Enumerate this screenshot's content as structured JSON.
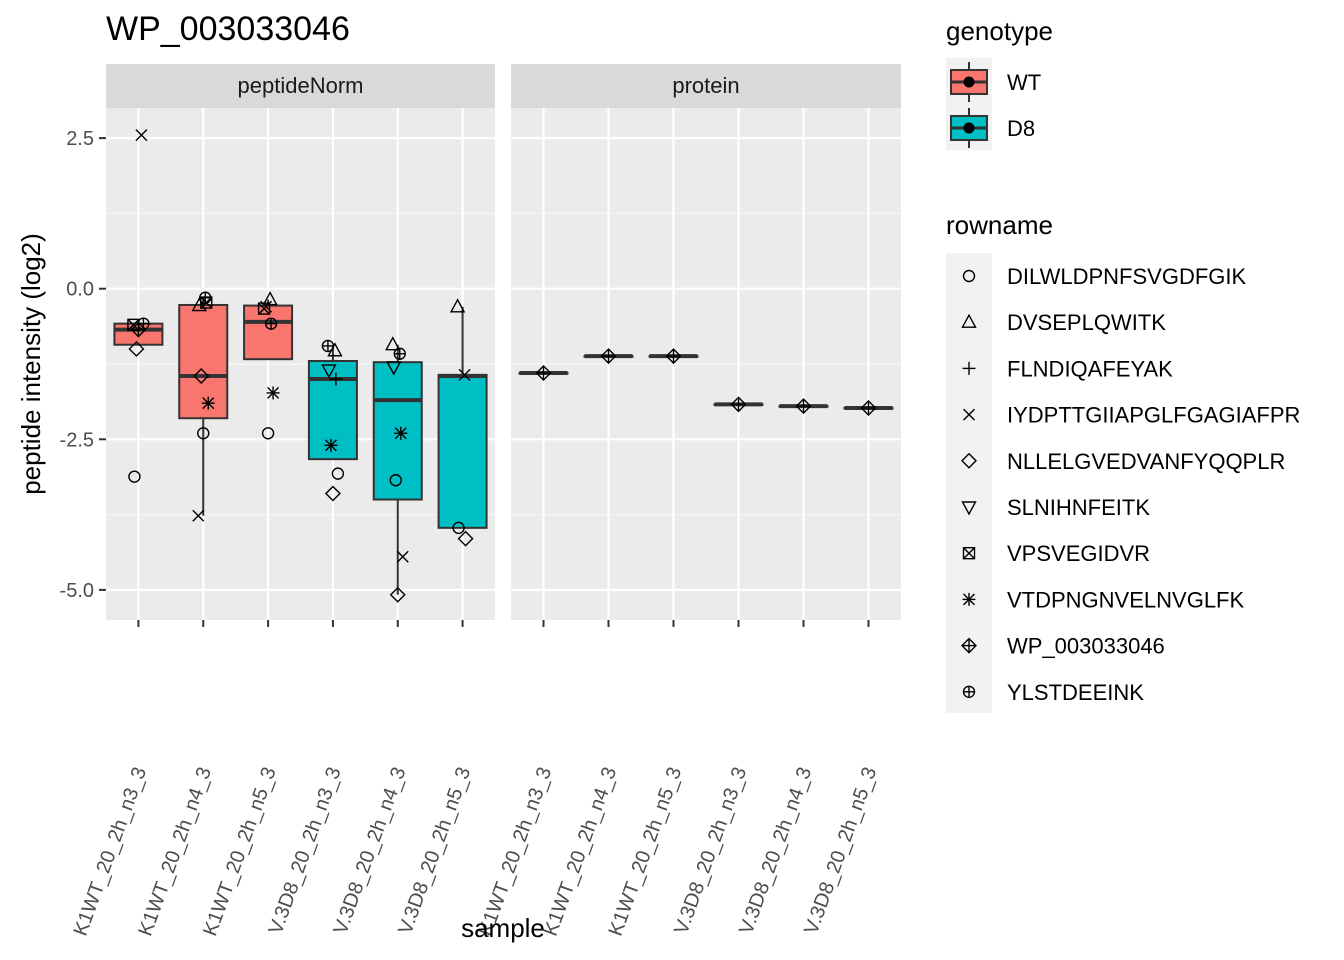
{
  "chart_data": {
    "type": "boxplot",
    "title": "WP_003033046",
    "xlabel": "sample",
    "ylabel": "peptide intensity (log2)",
    "ylim": [
      -5.5,
      3.0
    ],
    "yticks": [
      2.5,
      0.0,
      -2.5,
      -5.0
    ],
    "ytick_labels": [
      "2.5",
      "0.0",
      "-2.5",
      "-5.0"
    ],
    "facets": [
      "peptideNorm",
      "protein"
    ],
    "categories": [
      "K1WT_20_2h_n3_3",
      "K1WT_20_2h_n4_3",
      "K1WT_20_2h_n5_3",
      "V.3D8_20_2h_n3_3",
      "V.3D8_20_2h_n4_3",
      "V.3D8_20_2h_n5_3"
    ],
    "category_genotype": [
      "WT",
      "WT",
      "WT",
      "D8",
      "D8",
      "D8"
    ],
    "genotype_colors": {
      "WT": "#F8766D",
      "D8": "#00BFC4"
    },
    "grid": true,
    "legend_position": "right",
    "legend": {
      "genotype": {
        "title": "genotype",
        "items": [
          "WT",
          "D8"
        ]
      },
      "rowname": {
        "title": "rowname",
        "items": [
          {
            "name": "DILWLDPNFSVGDFGIK",
            "shape": "circle"
          },
          {
            "name": "DVSEPLQWITK",
            "shape": "triangle-up"
          },
          {
            "name": "FLNDIQAFEYAK",
            "shape": "plus"
          },
          {
            "name": "IYDPTTGIIAPGLFGAGIAFPR",
            "shape": "cross"
          },
          {
            "name": "NLLELGVEDVANFYQQPLR",
            "shape": "diamond"
          },
          {
            "name": "SLNIHNFEITK",
            "shape": "triangle-down"
          },
          {
            "name": "VPSVEGIDVR",
            "shape": "square-cross"
          },
          {
            "name": "VTDPNGNVELNVGLFK",
            "shape": "asterisk"
          },
          {
            "name": "WP_003033046",
            "shape": "diamond-plus"
          },
          {
            "name": "YLSTDEEINK",
            "shape": "circle-plus"
          }
        ]
      }
    },
    "panels": {
      "peptideNorm": {
        "boxes": [
          {
            "q1": -0.93,
            "median": -0.68,
            "q3": -0.58,
            "wlo": -0.93,
            "whi": -0.58
          },
          {
            "q1": -2.15,
            "median": -1.45,
            "q3": -0.27,
            "wlo": -3.77,
            "whi": -0.15
          },
          {
            "q1": -1.17,
            "median": -0.55,
            "q3": -0.28,
            "wlo": -1.17,
            "whi": -0.18
          },
          {
            "q1": -2.83,
            "median": -1.5,
            "q3": -1.2,
            "wlo": -2.83,
            "whi": -0.95
          },
          {
            "q1": -3.5,
            "median": -1.85,
            "q3": -1.22,
            "wlo": -5.08,
            "whi": -0.93
          },
          {
            "q1": -3.97,
            "median": -1.45,
            "q3": -1.43,
            "wlo": -3.97,
            "whi": -0.3
          }
        ],
        "points": [
          {
            "sample": 0,
            "peptide": "DILWLDPNFSVGDFGIK",
            "value": -3.12
          },
          {
            "sample": 0,
            "peptide": "IYDPTTGIIAPGLFGAGIAFPR",
            "value": 2.55
          },
          {
            "sample": 0,
            "peptide": "NLLELGVEDVANFYQQPLR",
            "value": -1.0
          },
          {
            "sample": 0,
            "peptide": "YLSTDEEINK",
            "value": -0.58
          },
          {
            "sample": 0,
            "peptide": "WP_003033046",
            "value": -0.68
          },
          {
            "sample": 0,
            "peptide": "VPSVEGIDVR",
            "value": -0.6
          },
          {
            "sample": 1,
            "peptide": "YLSTDEEINK",
            "value": -0.15
          },
          {
            "sample": 1,
            "peptide": "DVSEPLQWITK",
            "value": -0.28
          },
          {
            "sample": 1,
            "peptide": "VPSVEGIDVR",
            "value": -0.23
          },
          {
            "sample": 1,
            "peptide": "NLLELGVEDVANFYQQPLR",
            "value": -1.45
          },
          {
            "sample": 1,
            "peptide": "VTDPNGNVELNVGLFK",
            "value": -1.9
          },
          {
            "sample": 1,
            "peptide": "DILWLDPNFSVGDFGIK",
            "value": -2.4
          },
          {
            "sample": 1,
            "peptide": "IYDPTTGIIAPGLFGAGIAFPR",
            "value": -3.77
          },
          {
            "sample": 2,
            "peptide": "DVSEPLQWITK",
            "value": -0.18
          },
          {
            "sample": 2,
            "peptide": "VPSVEGIDVR",
            "value": -0.33
          },
          {
            "sample": 2,
            "peptide": "YLSTDEEINK",
            "value": -0.58
          },
          {
            "sample": 2,
            "peptide": "IYDPTTGIIAPGLFGAGIAFPR",
            "value": -0.3
          },
          {
            "sample": 2,
            "peptide": "VTDPNGNVELNVGLFK",
            "value": -1.73
          },
          {
            "sample": 2,
            "peptide": "DILWLDPNFSVGDFGIK",
            "value": -2.4
          },
          {
            "sample": 3,
            "peptide": "YLSTDEEINK",
            "value": -0.95
          },
          {
            "sample": 3,
            "peptide": "DVSEPLQWITK",
            "value": -1.03
          },
          {
            "sample": 3,
            "peptide": "SLNIHNFEITK",
            "value": -1.35
          },
          {
            "sample": 3,
            "peptide": "FLNDIQAFEYAK",
            "value": -1.5
          },
          {
            "sample": 3,
            "peptide": "VTDPNGNVELNVGLFK",
            "value": -2.6
          },
          {
            "sample": 3,
            "peptide": "DILWLDPNFSVGDFGIK",
            "value": -3.07
          },
          {
            "sample": 3,
            "peptide": "NLLELGVEDVANFYQQPLR",
            "value": -3.4
          },
          {
            "sample": 4,
            "peptide": "DVSEPLQWITK",
            "value": -0.93
          },
          {
            "sample": 4,
            "peptide": "YLSTDEEINK",
            "value": -1.08
          },
          {
            "sample": 4,
            "peptide": "SLNIHNFEITK",
            "value": -1.3
          },
          {
            "sample": 4,
            "peptide": "VTDPNGNVELNVGLFK",
            "value": -2.4
          },
          {
            "sample": 4,
            "peptide": "DILWLDPNFSVGDFGIK",
            "value": -3.18
          },
          {
            "sample": 4,
            "peptide": "IYDPTTGIIAPGLFGAGIAFPR",
            "value": -4.45
          },
          {
            "sample": 4,
            "peptide": "NLLELGVEDVANFYQQPLR",
            "value": -5.08
          },
          {
            "sample": 5,
            "peptide": "DVSEPLQWITK",
            "value": -0.3
          },
          {
            "sample": 5,
            "peptide": "IYDPTTGIIAPGLFGAGIAFPR",
            "value": -1.43
          },
          {
            "sample": 5,
            "peptide": "DILWLDPNFSVGDFGIK",
            "value": -3.97
          },
          {
            "sample": 5,
            "peptide": "NLLELGVEDVANFYQQPLR",
            "value": -4.15
          }
        ]
      },
      "protein": {
        "boxes": [
          {
            "q1": -1.4,
            "median": -1.4,
            "q3": -1.4,
            "wlo": -1.4,
            "whi": -1.4
          },
          {
            "q1": -1.12,
            "median": -1.12,
            "q3": -1.12,
            "wlo": -1.12,
            "whi": -1.12
          },
          {
            "q1": -1.12,
            "median": -1.12,
            "q3": -1.12,
            "wlo": -1.12,
            "whi": -1.12
          },
          {
            "q1": -1.92,
            "median": -1.92,
            "q3": -1.92,
            "wlo": -1.92,
            "whi": -1.92
          },
          {
            "q1": -1.95,
            "median": -1.95,
            "q3": -1.95,
            "wlo": -1.95,
            "whi": -1.95
          },
          {
            "q1": -1.98,
            "median": -1.98,
            "q3": -1.98,
            "wlo": -1.98,
            "whi": -1.98
          }
        ],
        "points": [
          {
            "sample": 0,
            "peptide": "WP_003033046",
            "value": -1.4
          },
          {
            "sample": 1,
            "peptide": "WP_003033046",
            "value": -1.12
          },
          {
            "sample": 2,
            "peptide": "WP_003033046",
            "value": -1.12
          },
          {
            "sample": 3,
            "peptide": "WP_003033046",
            "value": -1.92
          },
          {
            "sample": 4,
            "peptide": "WP_003033046",
            "value": -1.95
          },
          {
            "sample": 5,
            "peptide": "WP_003033046",
            "value": -1.98
          }
        ]
      }
    }
  }
}
